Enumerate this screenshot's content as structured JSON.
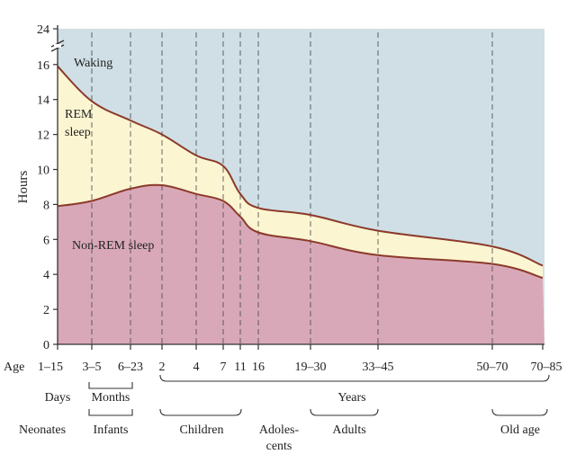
{
  "chart_data": {
    "type": "area",
    "ylabel": "Hours",
    "y_ticks": [
      0,
      2,
      4,
      6,
      8,
      10,
      12,
      14,
      16
    ],
    "y_top_label": "24",
    "ylim": [
      0,
      24
    ],
    "y_axis_break": true,
    "age_axis_prefix": "Age",
    "age_ticks": [
      {
        "label": "1–15",
        "unit": "days"
      },
      {
        "label": "3–5",
        "unit": "months"
      },
      {
        "label": "6–23",
        "unit": "months"
      },
      {
        "label": "2",
        "unit": "years"
      },
      {
        "label": "4",
        "unit": "years"
      },
      {
        "label": "7",
        "unit": "years"
      },
      {
        "label": "11",
        "unit": "years"
      },
      {
        "label": "16",
        "unit": "years"
      },
      {
        "label": "19–30",
        "unit": "years"
      },
      {
        "label": "33–45",
        "unit": "years"
      },
      {
        "label": "50–70",
        "unit": "years"
      },
      {
        "label": "70–85",
        "unit": "years"
      }
    ],
    "series": [
      {
        "name": "Non-REM sleep",
        "color": "#d9a8b8",
        "points": [
          {
            "age": "1–15",
            "hours": 7.9
          },
          {
            "age": "3–5",
            "hours": 8.2
          },
          {
            "age": "6–23",
            "hours": 8.9
          },
          {
            "age": "2",
            "hours": 9.1
          },
          {
            "age": "4",
            "hours": 8.6
          },
          {
            "age": "7",
            "hours": 8.2
          },
          {
            "age": "11",
            "hours": 7.3
          },
          {
            "age": "16",
            "hours": 6.4
          },
          {
            "age": "19–30",
            "hours": 5.9
          },
          {
            "age": "33–45",
            "hours": 5.1
          },
          {
            "age": "50–70",
            "hours": 4.6
          },
          {
            "age": "70–85",
            "hours": 3.8
          }
        ]
      },
      {
        "name": "REM sleep",
        "color": "#fbf5d2",
        "points": [
          {
            "age": "1–15",
            "hours": 15.9
          },
          {
            "age": "3–5",
            "hours": 13.9
          },
          {
            "age": "6–23",
            "hours": 12.8
          },
          {
            "age": "2",
            "hours": 12.0
          },
          {
            "age": "4",
            "hours": 10.8
          },
          {
            "age": "7",
            "hours": 10.2
          },
          {
            "age": "11",
            "hours": 8.6
          },
          {
            "age": "16",
            "hours": 7.8
          },
          {
            "age": "19–30",
            "hours": 7.4
          },
          {
            "age": "33–45",
            "hours": 6.5
          },
          {
            "age": "50–70",
            "hours": 5.6
          },
          {
            "age": "70–85",
            "hours": 4.5
          }
        ],
        "note": "values are cumulative total sleep (top of REM band)"
      },
      {
        "name": "Waking",
        "color": "#cfdfe5"
      }
    ],
    "groups_time_unit": [
      {
        "label": "Days"
      },
      {
        "label": "Months"
      },
      {
        "label": "Years"
      }
    ],
    "groups_life_stage": [
      {
        "label": "Neonates"
      },
      {
        "label": "Infants"
      },
      {
        "label": "Children"
      },
      {
        "label": "Adoles-",
        "label2": "cents"
      },
      {
        "label": "Adults"
      },
      {
        "label": "Old age"
      }
    ]
  },
  "colors": {
    "axis": "#333333",
    "boundary_line": "#8b3a2a",
    "text": "#222222"
  }
}
